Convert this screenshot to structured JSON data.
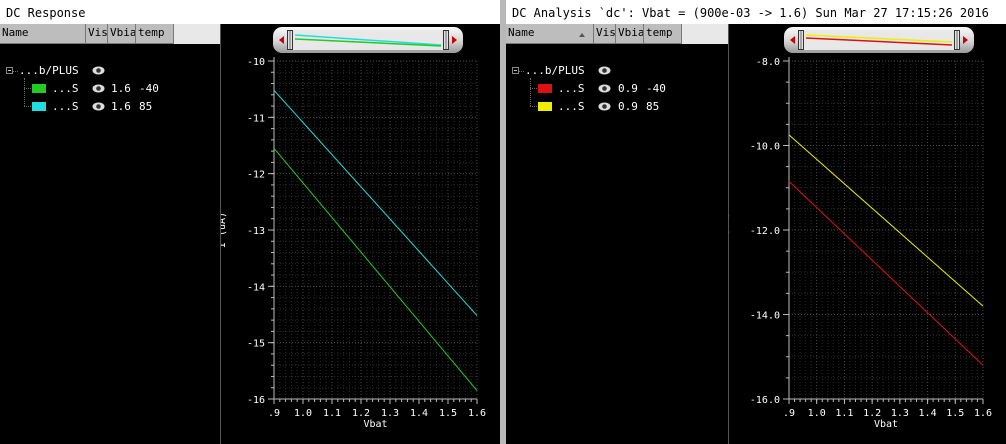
{
  "colors": {
    "green": "#22cc22",
    "cyan": "#22dddd",
    "red": "#dd1111",
    "yellow": "#eeee00"
  },
  "left": {
    "title": "DC Response",
    "columns": [
      "Name",
      "Vis",
      "Vbias",
      "temp"
    ],
    "group": "...b/PLUS",
    "rows": [
      {
        "name": "...S",
        "vbias": "1.6",
        "temp": "-40",
        "color": "#22cc22"
      },
      {
        "name": "...S",
        "vbias": "1.6",
        "temp": "85",
        "color": "#22dddd"
      }
    ]
  },
  "right": {
    "title": "DC Analysis `dc': Vbat = (900e-03 -> 1.6)  Sun Mar 27 17:15:26 2016",
    "columns": [
      "Name",
      "Vis",
      "Vbias",
      "temp"
    ],
    "group": "...b/PLUS",
    "rows": [
      {
        "name": "...S",
        "vbias": "0.9",
        "temp": "-40",
        "color": "#dd1111"
      },
      {
        "name": "...S",
        "vbias": "0.9",
        "temp": "85",
        "color": "#eeee00"
      }
    ]
  },
  "chart_data": [
    {
      "type": "line",
      "xlabel": "Vbat",
      "ylabel": "I (uA)",
      "xlim": [
        0.9,
        1.6
      ],
      "ylim": [
        -16,
        -10
      ],
      "xticks": [
        ".9",
        "1.0",
        "1.1",
        "1.2",
        "1.3",
        "1.4",
        "1.5",
        "1.6"
      ],
      "yticks": [
        "-10",
        "-11",
        "-12",
        "-13",
        "-14",
        "-15",
        "-16"
      ],
      "grid": true,
      "series": [
        {
          "color": "#22dddd",
          "x": [
            0.9,
            1.6
          ],
          "y": [
            -10.52,
            -14.52
          ]
        },
        {
          "color": "#22cc22",
          "x": [
            0.9,
            1.6
          ],
          "y": [
            -11.55,
            -15.85
          ]
        }
      ]
    },
    {
      "type": "line",
      "xlabel": "Vbat",
      "ylabel": "I (uA)",
      "xlim": [
        0.9,
        1.6
      ],
      "ylim": [
        -16.0,
        -8.0
      ],
      "xticks": [
        ".9",
        "1.0",
        "1.1",
        "1.2",
        "1.3",
        "1.4",
        "1.5",
        "1.6"
      ],
      "yticks": [
        "-8.0",
        "-10.0",
        "-12.0",
        "-14.0",
        "-16.0"
      ],
      "grid": true,
      "series": [
        {
          "color": "#eeee00",
          "x": [
            0.9,
            1.6
          ],
          "y": [
            -9.75,
            -13.8
          ]
        },
        {
          "color": "#dd1111",
          "x": [
            0.9,
            1.6
          ],
          "y": [
            -10.85,
            -15.2
          ]
        }
      ]
    }
  ]
}
